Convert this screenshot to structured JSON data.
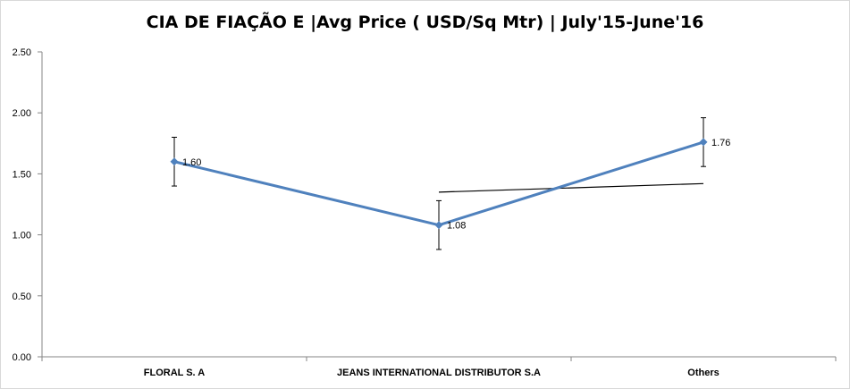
{
  "chart_data": {
    "type": "line",
    "title": "CIA DE FIAÇÃO E |Avg Price ( USD/Sq Mtr) | July'15-June'16",
    "xlabel": "",
    "ylabel": "",
    "categories": [
      "FLORAL S. A",
      "JEANS INTERNATIONAL DISTRIBUTOR S.A",
      "Others"
    ],
    "series": [
      {
        "values": [
          1.6,
          1.08,
          1.76
        ],
        "error": [
          0.2,
          0.2,
          0.2
        ],
        "color": "#4f81bd"
      }
    ],
    "trendline": {
      "start": 1.35,
      "end": 1.42,
      "color": "#000000"
    },
    "data_labels": [
      "1.60",
      "1.08",
      "1.76"
    ],
    "ylim": [
      0,
      2.5
    ],
    "yticks": [
      "0.00",
      "0.50",
      "1.00",
      "1.50",
      "2.00",
      "2.50"
    ],
    "grid": false,
    "legend": "none"
  }
}
